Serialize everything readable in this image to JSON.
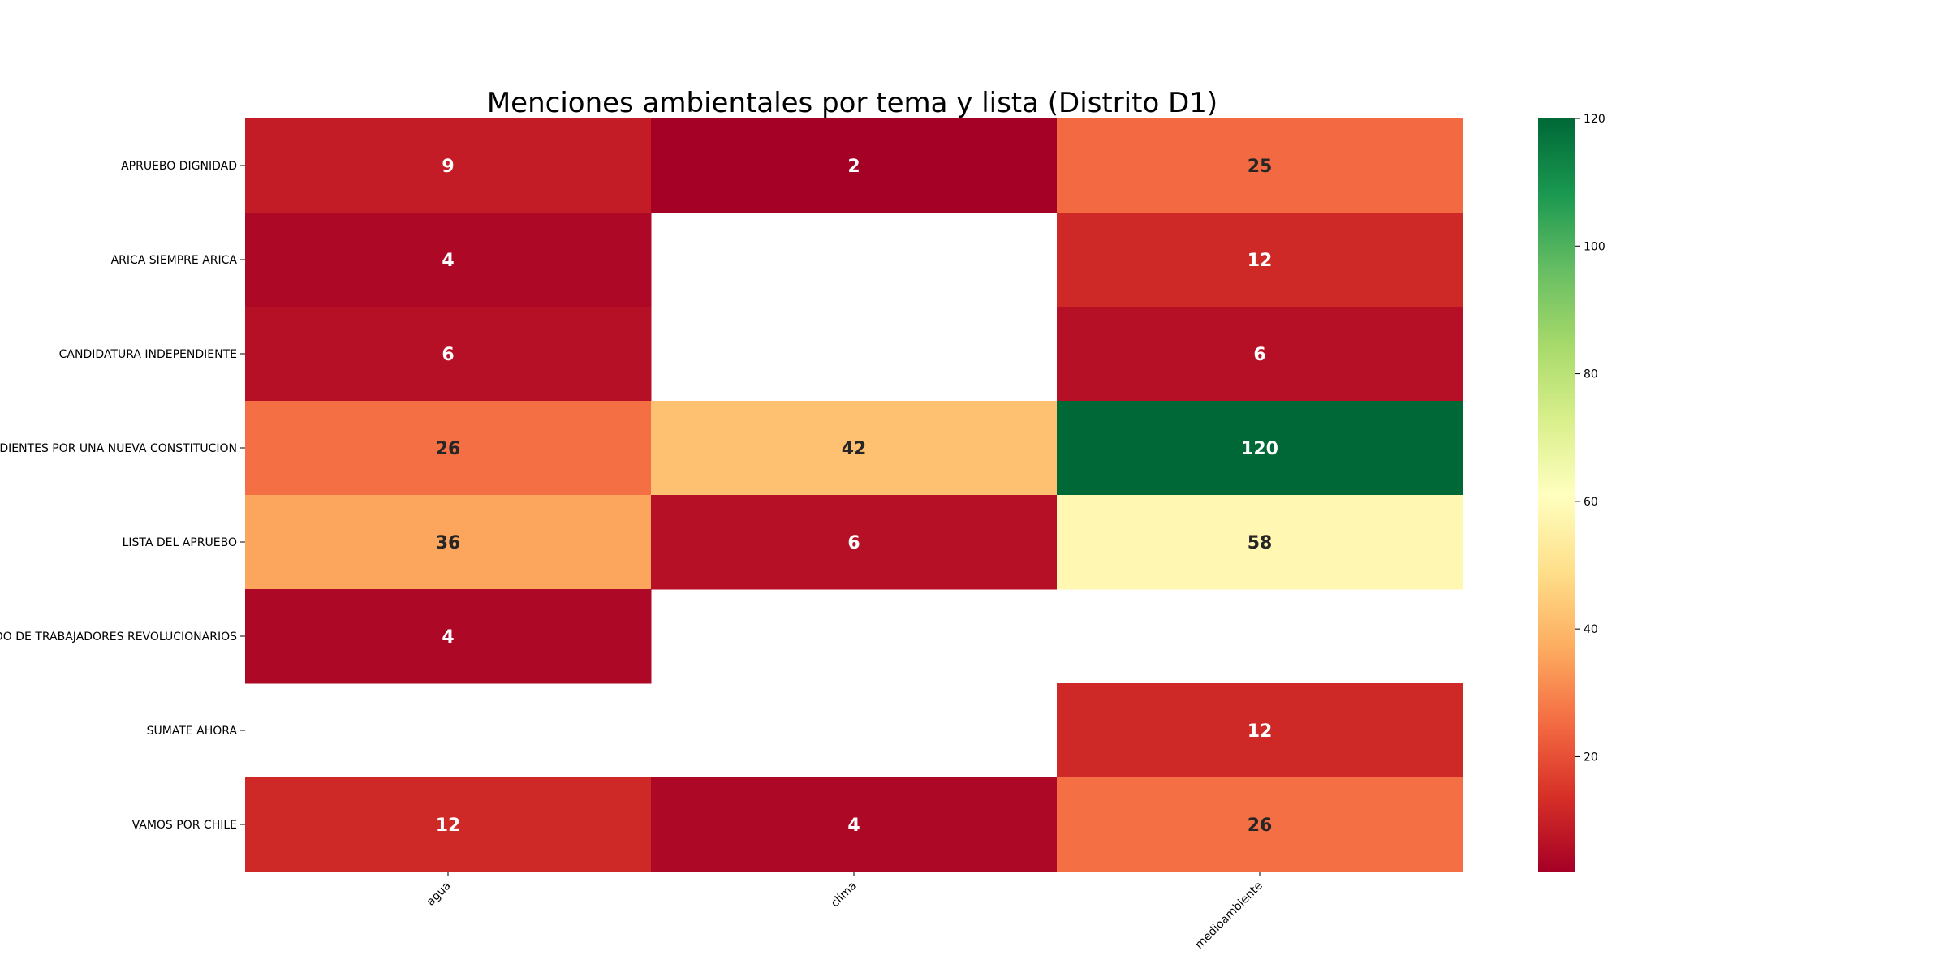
{
  "chart_data": {
    "type": "heatmap",
    "title": "Menciones ambientales por tema y lista (Distrito D1)",
    "xlabel": "",
    "ylabel": "",
    "x_categories": [
      "agua",
      "clima",
      "medioambiente"
    ],
    "y_categories": [
      "APRUEBO DIGNIDAD",
      "ARICA SIEMPRE ARICA",
      "CANDIDATURA INDEPENDIENTE",
      "INDEPENDIENTES POR UNA NUEVA CONSTITUCION",
      "LISTA DEL APRUEBO",
      "PARTIDO DE TRABAJADORES REVOLUCIONARIOS",
      "SUMATE AHORA",
      "VAMOS POR CHILE"
    ],
    "values": [
      [
        9,
        2,
        25
      ],
      [
        4,
        null,
        12
      ],
      [
        6,
        null,
        6
      ],
      [
        26,
        42,
        120
      ],
      [
        36,
        6,
        58
      ],
      [
        4,
        null,
        null
      ],
      [
        null,
        null,
        12
      ],
      [
        12,
        4,
        26
      ]
    ],
    "colormap": "RdYlGn",
    "color_range": [
      2,
      120
    ],
    "colorbar_ticks": [
      20,
      40,
      60,
      80,
      100,
      120
    ],
    "grid": false,
    "annotations": true
  }
}
